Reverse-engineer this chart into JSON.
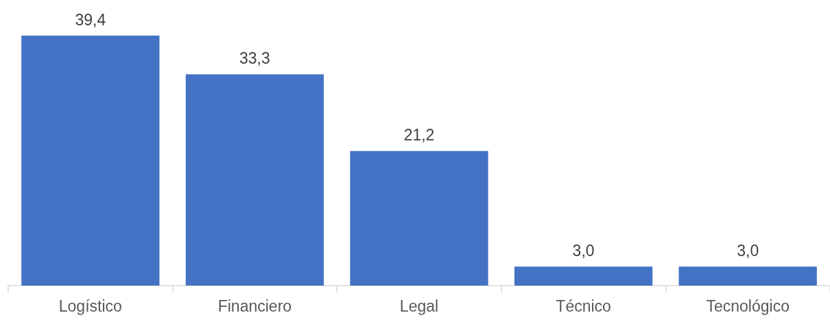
{
  "chart_data": {
    "type": "bar",
    "categories": [
      "Logístico",
      "Financiero",
      "Legal",
      "Técnico",
      "Tecnológico"
    ],
    "values": [
      39.4,
      33.3,
      21.2,
      3.0,
      3.0
    ],
    "value_labels": [
      "39,4",
      "33,3",
      "21,2",
      "3,0",
      "3,0"
    ],
    "color": "#4472c4"
  }
}
